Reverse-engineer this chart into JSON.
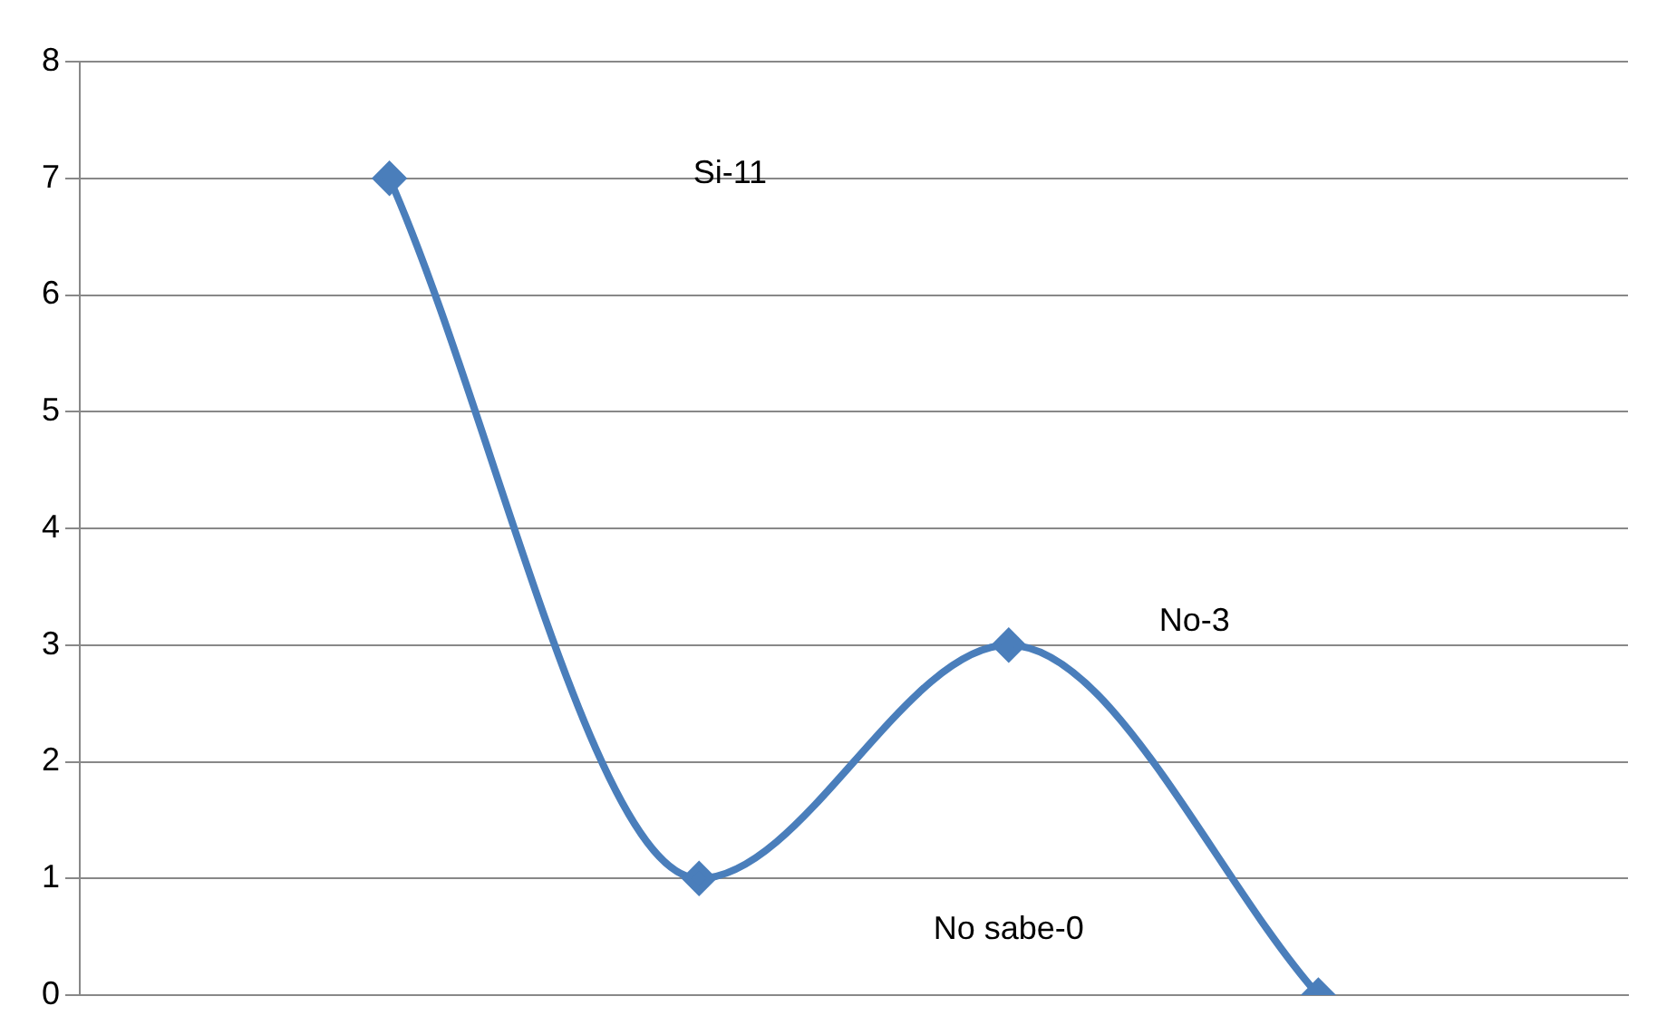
{
  "chart_data": {
    "type": "line",
    "categories": [
      null,
      null,
      null,
      null,
      null,
      null
    ],
    "series": [
      {
        "color": "#4a7ebb",
        "values": [
          null,
          7,
          1,
          3,
          0,
          null
        ]
      }
    ],
    "ylim": [
      0,
      8
    ],
    "yticks": [
      0,
      1,
      2,
      3,
      4,
      5,
      6,
      7,
      8
    ],
    "grid": "y",
    "legend": false,
    "tick_labels": "y",
    "marker": "diamond",
    "line_style": "solid",
    "annotations": [
      "Si-11",
      "No-3",
      "No sabe-0"
    ]
  }
}
